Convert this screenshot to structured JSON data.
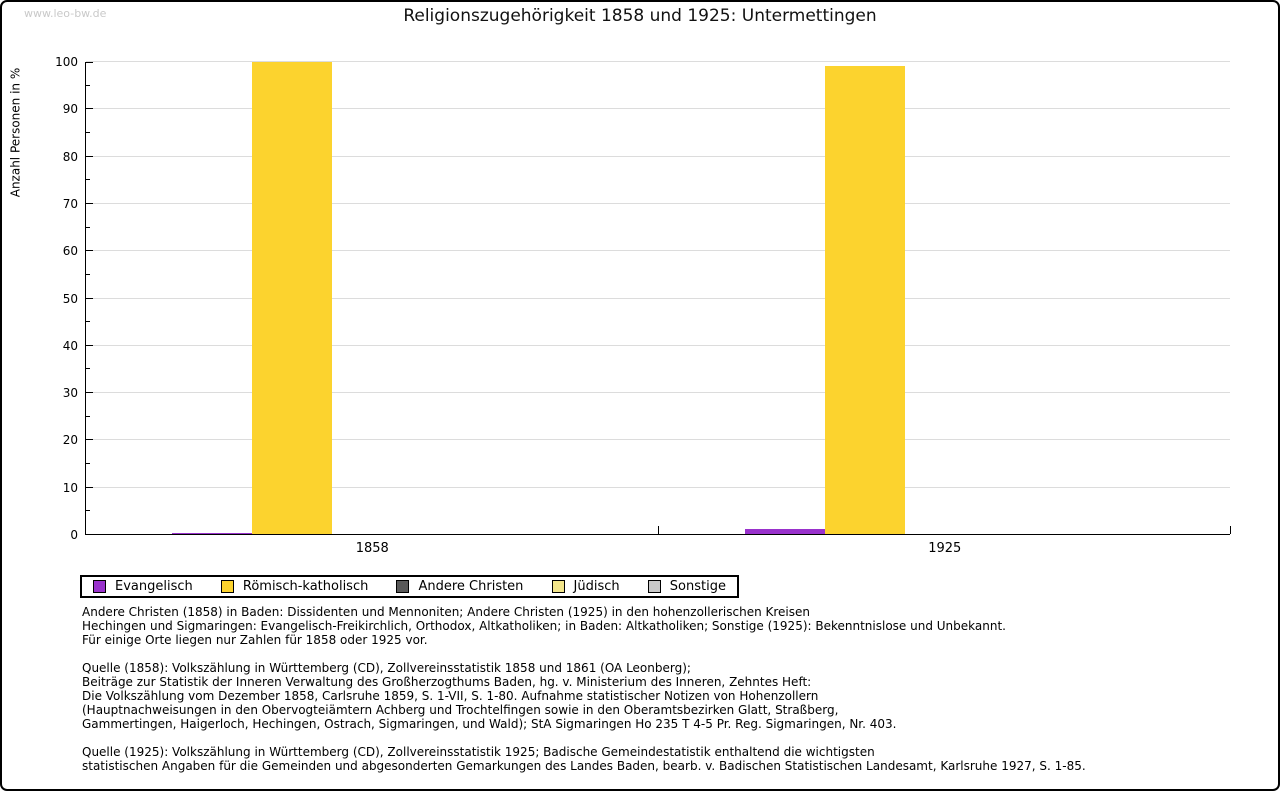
{
  "watermark": "www.leo-bw.de",
  "title": "Religionszugehörigkeit 1858 und 1925: Untermettingen",
  "chart_data": {
    "type": "bar",
    "title": "Religionszugehörigkeit 1858 und 1925: Untermettingen",
    "xlabel": "",
    "ylabel": "Anzahl Personen in %",
    "ylim": [
      0,
      100
    ],
    "ytick_interval": 10,
    "yminor_interval": 5,
    "grid": true,
    "legend_position": "bottom-left",
    "categories": [
      "1858",
      "1925"
    ],
    "series": [
      {
        "name": "Evangelisch",
        "color": "#9932cc",
        "values": [
          0.3,
          1.1
        ]
      },
      {
        "name": "Römisch-katholisch",
        "color": "#fcd32e",
        "values": [
          99.7,
          98.9
        ]
      },
      {
        "name": "Andere Christen",
        "color": "#595959",
        "values": [
          0,
          0
        ]
      },
      {
        "name": "Jüdisch",
        "color": "#f2e58a",
        "values": [
          0,
          0
        ]
      },
      {
        "name": "Sonstige",
        "color": "#c9c9c9",
        "values": [
          0,
          0
        ]
      }
    ]
  },
  "notes": [
    "Andere Christen (1858) in Baden: Dissidenten und Mennoniten; Andere Christen (1925) in den hohenzollerischen Kreisen\nHechingen und Sigmaringen: Evangelisch-Freikirchlich, Orthodox, Altkatholiken; in Baden: Altkatholiken; Sonstige (1925): Bekenntnislose und Unbekannt.\nFür einige Orte liegen nur Zahlen für 1858 oder 1925 vor.",
    "Quelle (1858): Volkszählung in Württemberg (CD), Zollvereinsstatistik 1858 und 1861 (OA Leonberg);\nBeiträge zur Statistik der Inneren Verwaltung des Großherzogthums Baden, hg. v. Ministerium des Inneren, Zehntes Heft:\nDie Volkszählung vom Dezember 1858, Carlsruhe 1859, S. 1-VII, S. 1-80. Aufnahme statistischer Notizen von Hohenzollern\n(Hauptnachweisungen in den Obervogteiämtern Achberg und Trochtelfingen sowie in den Oberamtsbezirken Glatt, Straßberg,\nGammertingen, Haigerloch, Hechingen, Ostrach, Sigmaringen, und Wald); StA Sigmaringen Ho 235 T 4-5 Pr. Reg. Sigmaringen, Nr. 403.",
    "Quelle (1925): Volkszählung in Württemberg (CD), Zollvereinsstatistik 1925; Badische Gemeindestatistik enthaltend die wichtigsten\nstatistischen Angaben für die Gemeinden und abgesonderten Gemarkungen des Landes Baden, bearb. v. Badischen Statistischen Landesamt, Karlsruhe 1927, S. 1-85."
  ]
}
